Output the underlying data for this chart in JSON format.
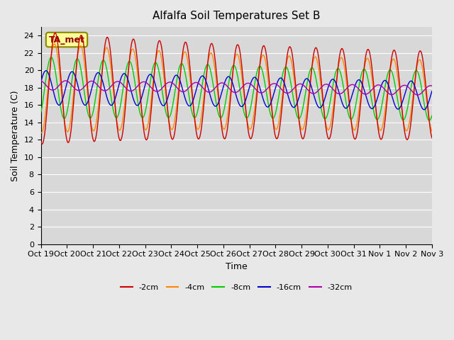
{
  "title": "Alfalfa Soil Temperatures Set B",
  "xlabel": "Time",
  "ylabel": "Soil Temperature (C)",
  "ylim": [
    0,
    25
  ],
  "yticks": [
    0,
    2,
    4,
    6,
    8,
    10,
    12,
    14,
    16,
    18,
    20,
    22,
    24
  ],
  "xtick_labels": [
    "Oct 19",
    "Oct 20",
    "Oct 21",
    "Oct 22",
    "Oct 23",
    "Oct 24",
    "Oct 25",
    "Oct 26",
    "Oct 27",
    "Oct 28",
    "Oct 29",
    "Oct 30",
    "Oct 31",
    "Nov 1",
    "Nov 2",
    "Nov 3"
  ],
  "colors": {
    "-2cm": "#cc0000",
    "-4cm": "#ff8800",
    "-8cm": "#00cc00",
    "-16cm": "#0000cc",
    "-32cm": "#aa00aa"
  },
  "legend_labels": [
    "-2cm",
    "-4cm",
    "-8cm",
    "-16cm",
    "-32cm"
  ],
  "annotation_text": "TA_met",
  "annotation_box_color": "#ffff99",
  "annotation_border_color": "#888800",
  "bg_color": "#e8e8e8",
  "plot_bg_color": "#d8d8d8",
  "grid_color": "#ffffff",
  "title_color": "#000000",
  "axis_label_color": "#000000",
  "n_days": 15,
  "n_per_day": 48
}
